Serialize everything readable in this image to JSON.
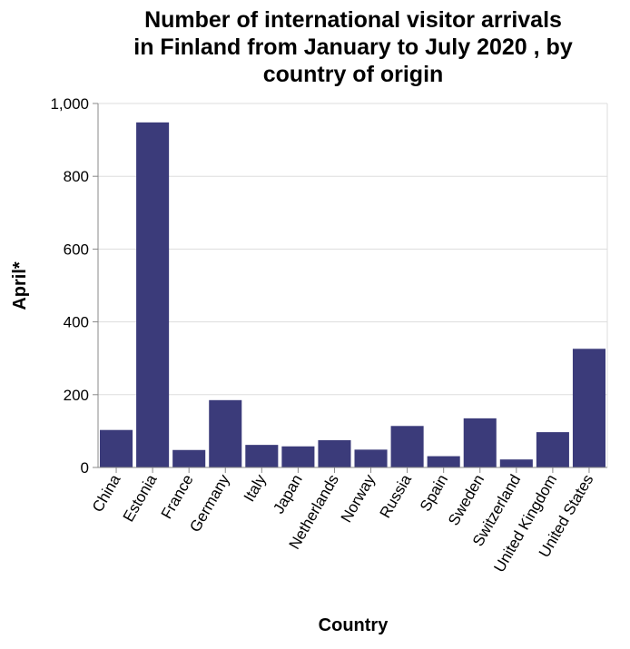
{
  "chart_data": {
    "type": "bar",
    "title_lines": [
      "Number of international visitor arrivals",
      "in Finland from January to July 2020 , by",
      "country of origin"
    ],
    "xlabel": "Country",
    "ylabel": "April*",
    "ylim": [
      0,
      1000
    ],
    "yticks": [
      0,
      200,
      400,
      600,
      800,
      1000
    ],
    "ytick_labels": [
      "0",
      "200",
      "400",
      "600",
      "800",
      "1,000"
    ],
    "grid": true,
    "bar_color": "#3b3b7a",
    "categories": [
      "China",
      "Estonia",
      "France",
      "Germany",
      "Italy",
      "Japan",
      "Netherlands",
      "Norway",
      "Russia",
      "Spain",
      "Sweden",
      "Switzerland",
      "United Kingdom",
      "United States"
    ],
    "values": [
      103,
      948,
      48,
      185,
      62,
      58,
      75,
      49,
      114,
      31,
      135,
      22,
      97,
      326
    ]
  }
}
